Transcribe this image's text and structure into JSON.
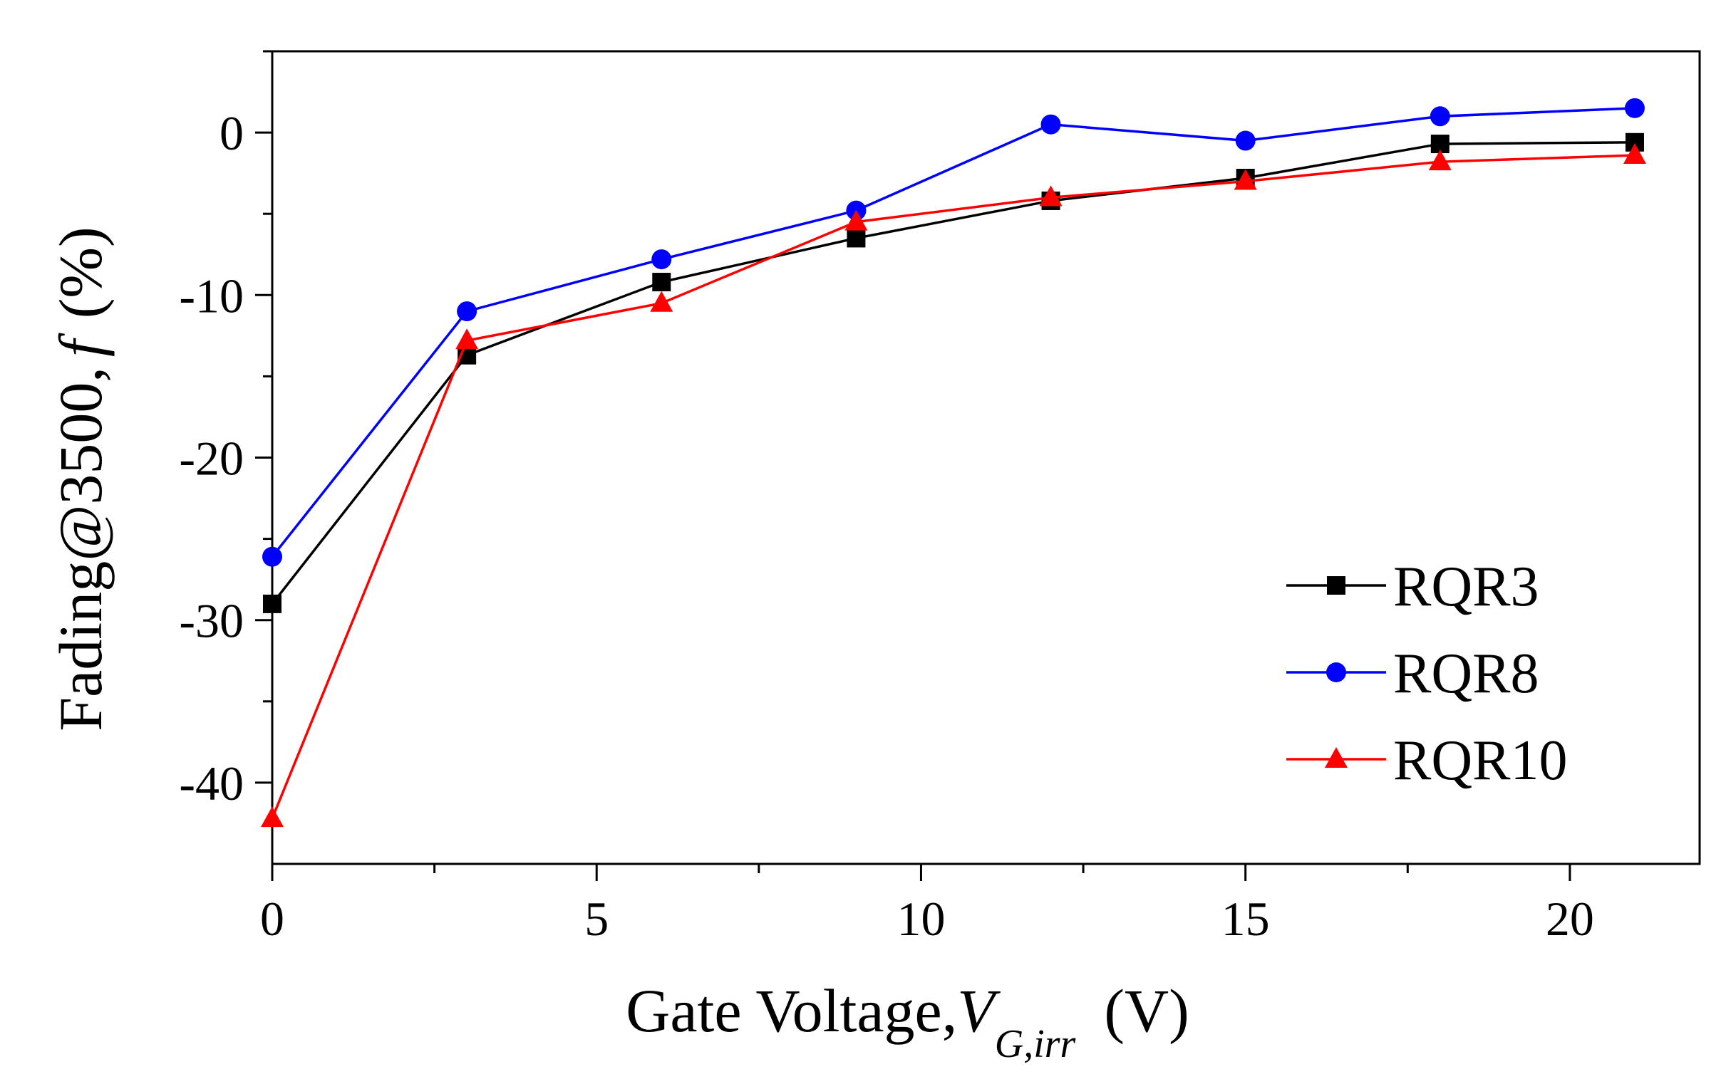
{
  "chart_data": {
    "type": "line",
    "xlabel": {
      "main": "Gate Voltage,",
      "symbol": "V",
      "subscript": "G,irr",
      "unit": "(V)"
    },
    "ylabel": {
      "main": "Fading@3500,",
      "symbol": "f",
      "unit": "(%)"
    },
    "xlim": [
      0,
      22
    ],
    "ylim": [
      -45,
      5
    ],
    "x_ticks": [
      0,
      5,
      10,
      15,
      20
    ],
    "x_tick_labels": [
      "0",
      "5",
      "10",
      "15",
      "20"
    ],
    "y_ticks": [
      0,
      -10,
      -20,
      -30,
      -40
    ],
    "y_tick_labels": [
      "0",
      "-10",
      "-20",
      "-30",
      "-40"
    ],
    "x": [
      0,
      3,
      6,
      9,
      12,
      15,
      18,
      21
    ],
    "series": [
      {
        "name": "RQR3",
        "color": "#000000",
        "marker": "square",
        "values": [
          -29,
          -13.7,
          -9.2,
          -6.5,
          -4.2,
          -2.8,
          -0.7,
          -0.6
        ]
      },
      {
        "name": "RQR8",
        "color": "#0000ff",
        "marker": "circle",
        "values": [
          -26.1,
          -11,
          -7.8,
          -4.8,
          0.5,
          -0.5,
          1,
          1.5
        ]
      },
      {
        "name": "RQR10",
        "color": "#ff0000",
        "marker": "triangle",
        "values": [
          -42.2,
          -12.8,
          -10.5,
          -5.5,
          -4,
          -3,
          -1.8,
          -1.4
        ]
      }
    ],
    "legend_position": "bottom-right",
    "grid": false
  }
}
